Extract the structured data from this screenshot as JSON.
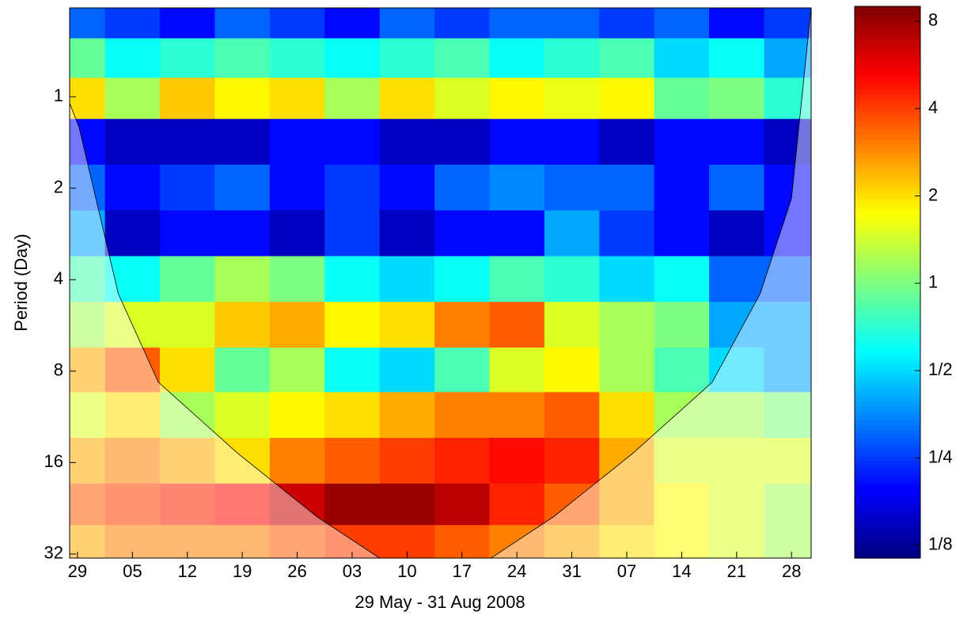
{
  "chart_data": {
    "type": "heatmap",
    "ylabel": "Period (Day)",
    "xlabel": "29 May - 31 Aug 2008",
    "x": [
      0,
      7,
      14,
      21,
      28,
      35,
      42,
      49,
      56,
      63,
      70,
      77,
      84,
      91
    ],
    "y": [
      0.55,
      0.75,
      1,
      1.4,
      2,
      2.8,
      4,
      5.6,
      8,
      11,
      16,
      22,
      30
    ],
    "values": [
      [
        0.3,
        0.25,
        0.2,
        0.3,
        0.25,
        0.2,
        0.3,
        0.25,
        0.3,
        0.3,
        0.25,
        0.3,
        0.2,
        0.25
      ],
      [
        0.9,
        0.6,
        0.7,
        0.8,
        0.7,
        0.6,
        0.7,
        0.8,
        0.6,
        0.7,
        0.8,
        0.5,
        0.6,
        0.4
      ],
      [
        2,
        1.2,
        2.2,
        1.8,
        2.0,
        1.2,
        2.0,
        1.5,
        1.8,
        1.6,
        1.8,
        0.9,
        1.0,
        0.7
      ],
      [
        0.2,
        0.15,
        0.15,
        0.15,
        0.2,
        0.2,
        0.15,
        0.15,
        0.2,
        0.2,
        0.15,
        0.2,
        0.2,
        0.15
      ],
      [
        0.3,
        0.2,
        0.25,
        0.3,
        0.2,
        0.25,
        0.2,
        0.3,
        0.35,
        0.3,
        0.3,
        0.2,
        0.3,
        0.2
      ],
      [
        0.4,
        0.15,
        0.2,
        0.2,
        0.15,
        0.25,
        0.15,
        0.2,
        0.2,
        0.4,
        0.25,
        0.2,
        0.15,
        0.2
      ],
      [
        0.8,
        0.6,
        0.9,
        1.2,
        1.0,
        0.6,
        0.5,
        0.6,
        0.8,
        0.7,
        0.5,
        0.6,
        0.3,
        0.3
      ],
      [
        1.2,
        1.5,
        1.5,
        2.2,
        2.5,
        1.8,
        2.0,
        3.0,
        3.5,
        1.5,
        1.2,
        1.0,
        0.4,
        0.4
      ],
      [
        2.5,
        3.5,
        2.0,
        0.9,
        1.2,
        0.6,
        0.5,
        0.8,
        1.5,
        1.8,
        1.2,
        0.8,
        0.5,
        0.4
      ],
      [
        1.5,
        2.0,
        1.2,
        1.5,
        1.8,
        2.0,
        2.5,
        3.0,
        3.0,
        3.5,
        2.0,
        1.2,
        1.2,
        1.0
      ],
      [
        2.5,
        3.0,
        2.5,
        2.0,
        3.0,
        3.5,
        4.0,
        4.5,
        5.0,
        4.5,
        2.5,
        1.5,
        1.5,
        1.5
      ],
      [
        3.5,
        4.0,
        4.5,
        5.0,
        6.5,
        8.0,
        8.0,
        7.0,
        4.5,
        3.5,
        2.5,
        1.8,
        1.5,
        1.2
      ],
      [
        2.5,
        3.0,
        3.0,
        3.0,
        3.5,
        4.0,
        4.0,
        3.5,
        3.0,
        2.5,
        2.0,
        1.8,
        1.5,
        1.2
      ]
    ],
    "xlim": [
      -1,
      93.5
    ],
    "xticks": [
      {
        "value": 0,
        "label": "29"
      },
      {
        "value": 7,
        "label": "05"
      },
      {
        "value": 14,
        "label": "12"
      },
      {
        "value": 21,
        "label": "19"
      },
      {
        "value": 28,
        "label": "26"
      },
      {
        "value": 35,
        "label": "03"
      },
      {
        "value": 42,
        "label": "10"
      },
      {
        "value": 49,
        "label": "17"
      },
      {
        "value": 56,
        "label": "24"
      },
      {
        "value": 63,
        "label": "31"
      },
      {
        "value": 70,
        "label": "07"
      },
      {
        "value": 77,
        "label": "14"
      },
      {
        "value": 84,
        "label": "21"
      },
      {
        "value": 91,
        "label": "28"
      }
    ],
    "ylim": [
      0.51,
      33
    ],
    "yticks": [
      1,
      2,
      4,
      8,
      16,
      32
    ],
    "y_scale": "log",
    "y_reversed": true,
    "colorbar": {
      "lim": [
        0.113,
        9
      ],
      "colormap": "jet",
      "scale": "log",
      "ticks": [
        {
          "value": 0.125,
          "label": "1/8"
        },
        {
          "value": 0.25,
          "label": "1/4"
        },
        {
          "value": 0.5,
          "label": "1/2"
        },
        1,
        2,
        4,
        8
      ]
    },
    "coi": {
      "x": [
        -1,
        0.2,
        5.2,
        10.3,
        20.4,
        30.5,
        38.5,
        52.7,
        60.7,
        70.8,
        80.9,
        87,
        91,
        93.5
      ],
      "y": [
        1.05,
        1.26,
        4.45,
        8.7,
        14.9,
        24.1,
        33,
        33,
        24.1,
        14.9,
        8.7,
        4.45,
        2.16,
        0.51
      ]
    }
  }
}
